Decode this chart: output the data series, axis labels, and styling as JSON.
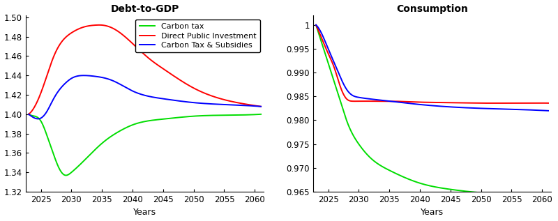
{
  "title_left": "Debt-to-GDP",
  "title_right": "Consumption",
  "xlabel": "Years",
  "debt_xlim": [
    2022.5,
    2061.5
  ],
  "debt_ylim": [
    1.32,
    1.502
  ],
  "debt_yticks": [
    1.32,
    1.34,
    1.36,
    1.38,
    1.4,
    1.42,
    1.44,
    1.46,
    1.48,
    1.5
  ],
  "cons_xlim": [
    2022.5,
    2061.5
  ],
  "cons_ylim": [
    0.965,
    1.002
  ],
  "cons_yticks": [
    0.965,
    0.97,
    0.975,
    0.98,
    0.985,
    0.99,
    0.995,
    1.0
  ],
  "x_ticks": [
    2025,
    2030,
    2035,
    2040,
    2045,
    2050,
    2055,
    2060
  ],
  "legend_labels": [
    "Carbon tax",
    "Direct Public Investment",
    "Carbon Tax & Subsidies"
  ],
  "colors": [
    "#00dd00",
    "#ff0000",
    "#0000ff"
  ],
  "debt_green_x": [
    2023,
    2024,
    2025,
    2026,
    2027,
    2028,
    2029,
    2030,
    2033,
    2035,
    2038,
    2040,
    2045,
    2050,
    2055,
    2061
  ],
  "debt_green_y": [
    1.4,
    1.398,
    1.393,
    1.378,
    1.36,
    1.344,
    1.337,
    1.34,
    1.358,
    1.37,
    1.383,
    1.389,
    1.395,
    1.398,
    1.399,
    1.4
  ],
  "debt_red_x": [
    2023,
    2024,
    2025,
    2026,
    2027,
    2028,
    2030,
    2032,
    2034,
    2035,
    2037,
    2040,
    2043,
    2045,
    2050,
    2055,
    2061
  ],
  "debt_red_y": [
    1.4,
    1.408,
    1.422,
    1.44,
    1.458,
    1.471,
    1.484,
    1.49,
    1.492,
    1.492,
    1.488,
    1.473,
    1.456,
    1.447,
    1.427,
    1.415,
    1.408
  ],
  "debt_blue_x": [
    2023,
    2024,
    2025,
    2026,
    2027,
    2028,
    2029,
    2030,
    2032,
    2034,
    2035,
    2037,
    2040,
    2045,
    2050,
    2055,
    2061
  ],
  "debt_blue_y": [
    1.4,
    1.396,
    1.396,
    1.403,
    1.415,
    1.425,
    1.432,
    1.437,
    1.44,
    1.439,
    1.438,
    1.434,
    1.424,
    1.416,
    1.412,
    1.41,
    1.408
  ],
  "cons_green_x": [
    2023,
    2024,
    2025,
    2026,
    2027,
    2028,
    2030,
    2032,
    2035,
    2040,
    2045,
    2050,
    2055,
    2061
  ],
  "cons_green_y": [
    1.0,
    0.996,
    0.992,
    0.988,
    0.984,
    0.98,
    0.975,
    0.972,
    0.9695,
    0.9668,
    0.9655,
    0.9648,
    0.9645,
    0.9644
  ],
  "cons_red_x": [
    2023,
    2024,
    2025,
    2026,
    2027,
    2028,
    2029,
    2030,
    2033,
    2035,
    2040,
    2045,
    2050,
    2055,
    2061
  ],
  "cons_red_y": [
    1.0,
    0.997,
    0.994,
    0.991,
    0.987,
    0.9845,
    0.984,
    0.984,
    0.984,
    0.984,
    0.9838,
    0.9837,
    0.9836,
    0.9836,
    0.9836
  ],
  "cons_blue_x": [
    2023,
    2024,
    2025,
    2026,
    2027,
    2028,
    2029,
    2030,
    2033,
    2035,
    2040,
    2045,
    2050,
    2055,
    2061
  ],
  "cons_blue_y": [
    1.0,
    0.998,
    0.995,
    0.992,
    0.989,
    0.9865,
    0.9852,
    0.9848,
    0.9843,
    0.984,
    0.9833,
    0.9828,
    0.9825,
    0.9823,
    0.982
  ],
  "background_color": "#ffffff",
  "linewidth": 1.4,
  "fontsize_title": 10,
  "fontsize_tick": 8.5,
  "fontsize_legend": 8,
  "fontsize_label": 9
}
